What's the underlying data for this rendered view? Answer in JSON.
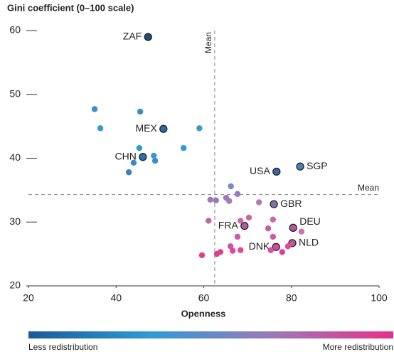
{
  "chart_data": {
    "type": "scatter",
    "title": "Gini coefficient (0–100 scale)",
    "x_label": "Openness",
    "xlim": [
      20,
      100
    ],
    "xticks": [
      20,
      40,
      60,
      80,
      100
    ],
    "ylim": [
      20,
      60
    ],
    "yticks": [
      20,
      30,
      40,
      50,
      60
    ],
    "mean_x": 62.5,
    "mean_x_label": "Mean",
    "mean_y": 34.3,
    "mean_y_label": "Mean",
    "x": [
      47.3,
      50.8,
      46.1,
      76.6,
      82.0,
      76.0,
      80.4,
      69.3,
      76.5,
      80.2,
      35.1,
      36.4,
      45.5,
      45.3,
      48.6,
      48.9,
      44.0,
      42.9,
      55.4,
      59.0,
      66.2,
      67.7,
      65.1,
      65.8,
      61.5,
      62.8,
      72.6,
      70.3,
      68.4,
      61.1,
      75.8,
      74.7,
      82.3,
      75.8,
      67.7,
      66.1,
      63.8,
      66.6,
      68.4,
      63.0,
      59.6,
      75.3,
      77.9,
      79.2
    ],
    "values": [
      59.0,
      44.6,
      40.2,
      37.9,
      38.7,
      32.8,
      29.1,
      29.4,
      26.1,
      26.7,
      47.7,
      44.7,
      47.3,
      41.6,
      40.4,
      39.6,
      39.3,
      37.8,
      41.6,
      44.7,
      35.6,
      34.4,
      33.8,
      33.3,
      33.5,
      33.4,
      33.1,
      30.7,
      30.2,
      30.2,
      30.4,
      29.0,
      28.5,
      27.7,
      27.7,
      26.2,
      25.3,
      25.5,
      25.6,
      25.0,
      24.8,
      25.6,
      25.3,
      26.2
    ],
    "labels": [
      "ZAF",
      "MEX",
      "CHN",
      "USA",
      "SGP",
      "GBR",
      "DEU",
      "FRA",
      "DNK",
      "NLD",
      null,
      null,
      null,
      null,
      null,
      null,
      null,
      null,
      null,
      null,
      null,
      null,
      null,
      null,
      null,
      null,
      null,
      null,
      null,
      null,
      null,
      null,
      null,
      null,
      null,
      null,
      null,
      null,
      null,
      null,
      null,
      null,
      null,
      null
    ],
    "colors": [
      "#1f4e79",
      "#2a6aa6",
      "#2d73b0",
      "#3d64a6",
      "#4680bd",
      "#8a6ea9",
      "#b4589e",
      "#b45a9f",
      "#c8509c",
      "#c2579e",
      "#3b8fc9",
      "#2f9ad6",
      "#3a8ccb",
      "#2f9ad6",
      "#3a95d0",
      "#3b8fc9",
      "#3a88c4",
      "#3b82bf",
      "#2f9ad6",
      "#3a95d0",
      "#7a88c4",
      "#9a7ab8",
      "#a07ab8",
      "#a87ab6",
      "#a07ab8",
      "#9a7ab8",
      "#b07ab6",
      "#c06aac",
      "#c86aac",
      "#b86aa8",
      "#c86aac",
      "#c060a8",
      "#d070b0",
      "#c85aa8",
      "#c85aa8",
      "#d050a2",
      "#e03e92",
      "#e0489a",
      "#d84a9c",
      "#e03e92",
      "#e83a8c",
      "#d850a0",
      "#e0409a",
      "#d84e9e"
    ],
    "colorbar": {
      "colors": [
        "#1a5a9a",
        "#2f9ad6",
        "#9a7ab8",
        "#e8308a"
      ],
      "low_label": "Less redistribution",
      "high_label": "More redistribution"
    }
  }
}
